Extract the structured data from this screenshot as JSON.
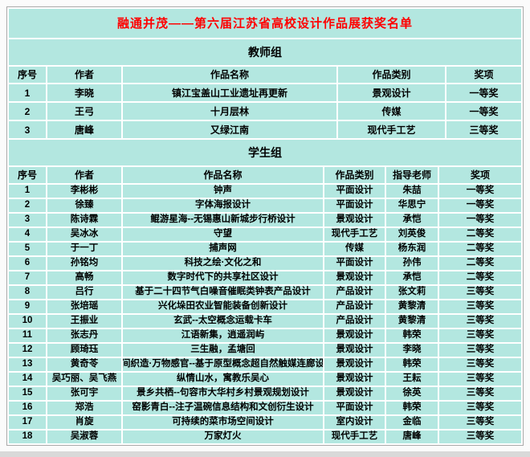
{
  "title": "融通并茂——第六届江苏省高校设计作品展获奖名单",
  "colors": {
    "cell_bg": "#b3e7e0",
    "grid_line": "#ffffff",
    "title_red": "#ff0000",
    "outer_border": "#a9a9a9",
    "text": "#000000"
  },
  "teacher_section": {
    "heading": "教师组",
    "columns": [
      "序号",
      "作者",
      "作品名称",
      "作品类别",
      "奖项"
    ],
    "rows": [
      [
        "1",
        "李晓",
        "镇江宝盖山工业遗址再更新",
        "景观设计",
        "一等奖"
      ],
      [
        "2",
        "王弓",
        "十月层林",
        "传媒",
        "一等奖"
      ],
      [
        "3",
        "唐峰",
        "又绿江南",
        "现代手工艺",
        "三等奖"
      ]
    ]
  },
  "student_section": {
    "heading": "学生组",
    "columns": [
      "序号",
      "作者",
      "作品名称",
      "作品类别",
      "指导老师",
      "奖项"
    ],
    "rows": [
      [
        "1",
        "李彬彬",
        "钟声",
        "平面设计",
        "朱喆",
        "一等奖"
      ],
      [
        "2",
        "徐臻",
        "字体海报设计",
        "平面设计",
        "华思宁",
        "一等奖"
      ],
      [
        "3",
        "陈诗霖",
        "鲲游星海--无锡惠山新城步行桥设计",
        "景观设计",
        "承恺",
        "一等奖"
      ],
      [
        "4",
        "吴冰冰",
        "守望",
        "现代手工艺",
        "刘英俊",
        "二等奖"
      ],
      [
        "5",
        "于一丁",
        "捕声网",
        "传媒",
        "杨东润",
        "二等奖"
      ],
      [
        "6",
        "孙铭均",
        "科技之绘·文化之和",
        "平面设计",
        "孙伟",
        "二等奖"
      ],
      [
        "7",
        "高畅",
        "数字时代下的共享社区设计",
        "景观设计",
        "承恺",
        "二等奖"
      ],
      [
        "8",
        "吕行",
        "基于二十四节气白噪音催眠类钟表产品设计",
        "产品设计",
        "张文莉",
        "三等奖"
      ],
      [
        "9",
        "张培瑶",
        "兴化垛田农业智能装备创新设计",
        "产品设计",
        "黄黎清",
        "三等奖"
      ],
      [
        "10",
        "王振业",
        "玄武--太空概念运载卡车",
        "产品设计",
        "黄黎清",
        "三等奖"
      ],
      [
        "11",
        "张志丹",
        "江语新集，逍遥润屿",
        "景观设计",
        "韩荣",
        "三等奖"
      ],
      [
        "12",
        "顾琦珏",
        "三生融，孟塘回",
        "景观设计",
        "李晓",
        "三等奖"
      ],
      [
        "13",
        "黄奇苓",
        "空间织造·万物感官--基于原型概念超自然触媒连廊设计",
        "景观设计",
        "韩荣",
        "三等奖"
      ],
      [
        "14",
        "吴巧丽、吴飞燕",
        "纵情山水，寓教乐吴心",
        "景观设计",
        "王耘",
        "三等奖"
      ],
      [
        "15",
        "张可宇",
        "景乡共栖--句容市大华村乡村景观规划设计",
        "景观设计",
        "徐英",
        "三等奖"
      ],
      [
        "16",
        "郑浩",
        "窑影青白--注子温碗信息结构和文创衍生设计",
        "平面设计",
        "韩荣",
        "三等奖"
      ],
      [
        "17",
        "肖旋",
        "可持续的菜市场空间设计",
        "室内设计",
        "金临",
        "三等奖"
      ],
      [
        "18",
        "吴淑蓉",
        "万家灯火",
        "现代手工艺",
        "唐峰",
        "三等奖"
      ]
    ]
  }
}
